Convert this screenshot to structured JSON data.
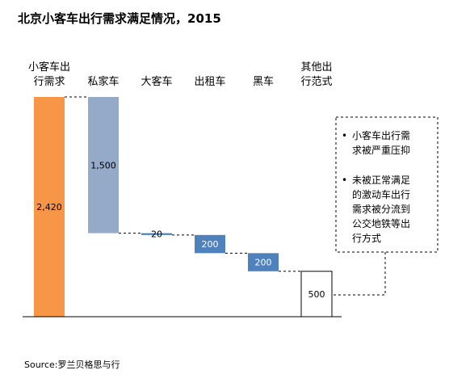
{
  "title": "北京小客车出行需求满足情况，2015",
  "source": "Source:罗兰贝格思与行",
  "chart_data": {
    "type": "bar",
    "subtype": "waterfall",
    "title": "北京小客车出行需求满足情况，2015",
    "categories": [
      "小客车出行需求",
      "私家车",
      "大客车",
      "出租车",
      "黑车",
      "其他出行范式"
    ],
    "category_lines": [
      [
        "小客车出",
        "行需求"
      ],
      [
        "私家车"
      ],
      [
        "大客车"
      ],
      [
        "出租车"
      ],
      [
        "黑车"
      ],
      [
        "其他出",
        "行范式"
      ]
    ],
    "values": [
      2420,
      1500,
      20,
      200,
      200,
      500
    ],
    "value_labels": [
      "2,420",
      "1,500",
      "20",
      "200",
      "200",
      "500"
    ],
    "steps": [
      {
        "kind": "total",
        "start": 0,
        "end": 2420
      },
      {
        "kind": "delta",
        "start": 2420,
        "end": 920
      },
      {
        "kind": "delta",
        "start": 920,
        "end": 900
      },
      {
        "kind": "delta",
        "start": 900,
        "end": 700
      },
      {
        "kind": "delta",
        "start": 700,
        "end": 500
      },
      {
        "kind": "remainder",
        "start": 500,
        "end": 0
      }
    ],
    "colors": [
      "#F79646",
      "#95A9C8",
      "#4F81BD",
      "#4F81BD",
      "#4F81BD",
      "#FFFFFF"
    ],
    "ylim": [
      0,
      2420
    ],
    "grid": false,
    "legend": "none",
    "annotation": {
      "bullets": [
        [
          "小客车出行需",
          "求被严重压抑"
        ],
        [
          "未被正常满足",
          "的激动车出行",
          "需求被分流到",
          "公交地铁等出",
          "行方式"
        ]
      ]
    }
  }
}
